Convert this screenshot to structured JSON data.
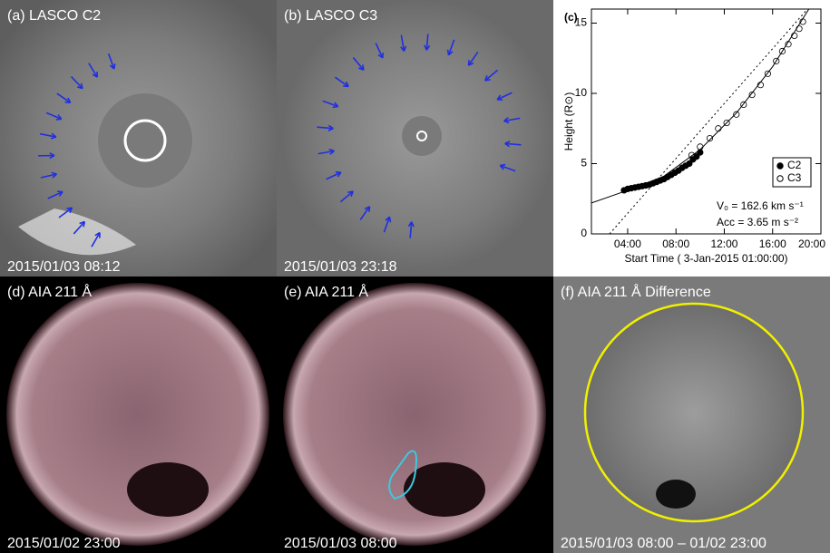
{
  "panels": [
    {
      "label": "(a) LASCO C2",
      "time": "2015/01/03 08:12"
    },
    {
      "label": "(b) LASCO C3",
      "time": "2015/01/03 23:18"
    },
    {
      "label": "(d) AIA 211 Å",
      "time": "2015/01/02 23:00"
    },
    {
      "label": "(e) AIA 211 Å",
      "time": "2015/01/03 08:00"
    },
    {
      "label": "(f) AIA 211 Å Difference",
      "time": "2015/01/03 08:00 – 01/02 23:00"
    }
  ],
  "chart_data": {
    "type": "scatter",
    "title": "(c)",
    "x_label": "Start Time ( 3-Jan-2015 01:00:00)",
    "y_label": "Height (R⊙)",
    "xlim": [
      0,
      19
    ],
    "ylim": [
      0,
      16
    ],
    "xticks": [
      {
        "value": 3,
        "label": "04:00"
      },
      {
        "value": 7,
        "label": "08:00"
      },
      {
        "value": 11,
        "label": "12:00"
      },
      {
        "value": 15,
        "label": "16:00"
      },
      {
        "value": 19,
        "label": "20:00"
      }
    ],
    "yticks": [
      0,
      5,
      10,
      15
    ],
    "legend": "lower right",
    "series": [
      {
        "name": "C2",
        "marker": "filled",
        "color": "#000",
        "x": [
          2.7,
          3.0,
          3.3,
          3.6,
          3.9,
          4.2,
          4.5,
          4.8,
          5.1,
          5.4,
          5.7,
          6.0,
          6.3,
          6.6,
          6.9,
          7.2,
          7.5,
          7.8,
          8.1,
          8.4,
          8.7,
          9.0
        ],
        "values": [
          3.1,
          3.2,
          3.25,
          3.3,
          3.35,
          3.4,
          3.45,
          3.5,
          3.6,
          3.7,
          3.8,
          3.9,
          4.05,
          4.2,
          4.35,
          4.5,
          4.7,
          4.85,
          5.0,
          5.3,
          5.5,
          5.8
        ]
      },
      {
        "name": "C3",
        "marker": "open",
        "color": "#000",
        "x": [
          8.3,
          9.0,
          9.8,
          10.5,
          11.2,
          12.0,
          12.6,
          13.3,
          14.0,
          14.6,
          15.3,
          15.8,
          16.3,
          16.8,
          17.2,
          17.5
        ],
        "values": [
          5.6,
          6.2,
          6.8,
          7.5,
          7.9,
          8.5,
          9.2,
          9.9,
          10.6,
          11.4,
          12.3,
          13.0,
          13.5,
          14.1,
          14.6,
          15.1
        ]
      }
    ],
    "fits": [
      {
        "style": "solid",
        "x": [
          0,
          3,
          6,
          9,
          12,
          15,
          18
        ],
        "values": [
          2.2,
          3.1,
          4.1,
          6.0,
          8.6,
          11.9,
          16.0
        ]
      },
      {
        "style": "dotted",
        "x": [
          1.5,
          18.5
        ],
        "values": [
          0,
          16.6
        ]
      }
    ],
    "annotations": [
      "V₀ = 162.6 km s⁻¹",
      "Acc = 3.65 m s⁻²"
    ]
  }
}
